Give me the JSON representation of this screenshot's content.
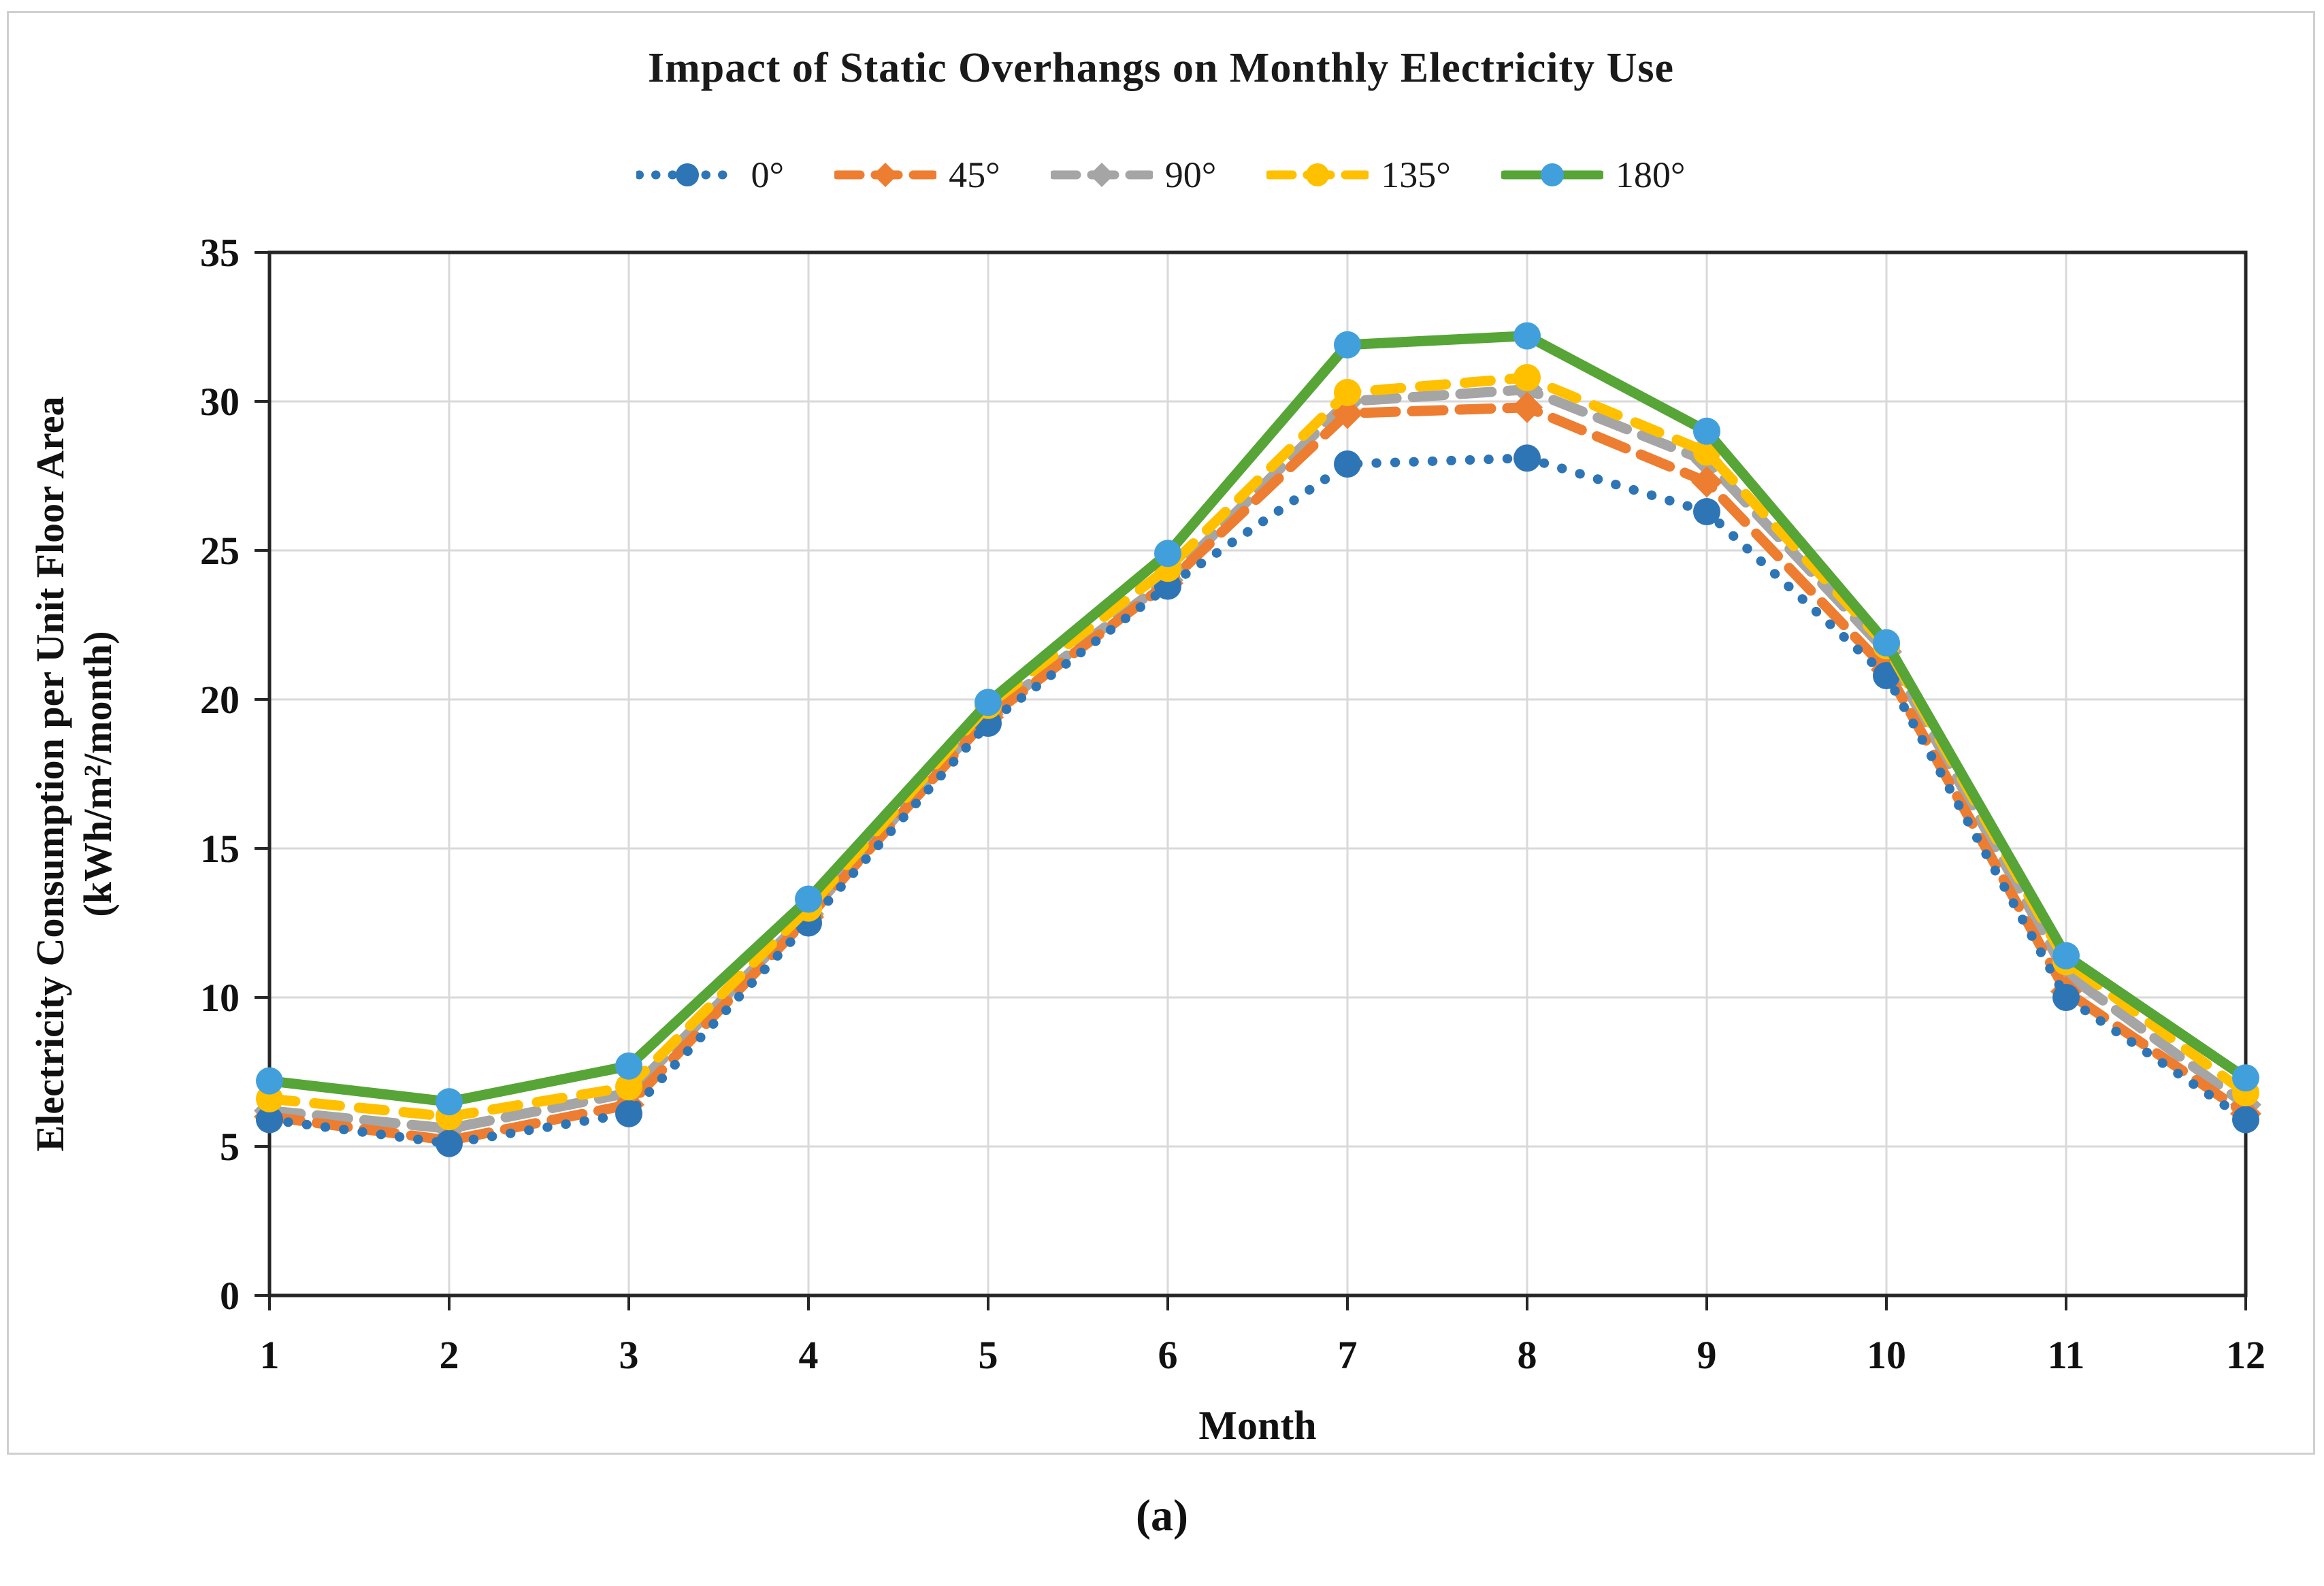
{
  "title": "Impact of Static Overhangs on Monthly Electricity Use",
  "caption": "(a)",
  "chart_data": {
    "type": "line",
    "title": "Impact of Static Overhangs on Monthly Electricity Use",
    "xlabel": "Month",
    "ylabel": "Electricity Consumption per Unit Floor Area (kWh/m²/month)",
    "ylabel_lines": [
      "Electricity Consumption per Unit Floor Area",
      "(kWh/m²/month)"
    ],
    "x": [
      1,
      2,
      3,
      4,
      5,
      6,
      7,
      8,
      9,
      10,
      11,
      12
    ],
    "ylim": [
      0,
      35
    ],
    "ytick_step": 5,
    "grid": "on",
    "legend_position": "top",
    "series": [
      {
        "name": "0°",
        "color": "#2E75B6",
        "marker_color": "#2E75B6",
        "dash": "dotted",
        "marker": "circle",
        "values": [
          5.9,
          5.1,
          6.1,
          12.5,
          19.2,
          23.8,
          27.9,
          28.1,
          26.3,
          20.8,
          10.0,
          5.9
        ]
      },
      {
        "name": "45°",
        "color": "#ED7D31",
        "marker_color": "#ED7D31",
        "dash": "long-dash",
        "marker": "diamond",
        "values": [
          6.0,
          5.2,
          6.4,
          12.7,
          19.4,
          23.9,
          29.6,
          29.8,
          27.3,
          21.0,
          10.2,
          6.1
        ]
      },
      {
        "name": "90°",
        "color": "#A5A5A5",
        "marker_color": "#A5A5A5",
        "dash": "long-dash",
        "marker": "diamond",
        "values": [
          6.2,
          5.6,
          6.8,
          12.8,
          19.5,
          24.0,
          30.0,
          30.4,
          28.0,
          21.6,
          10.8,
          6.4
        ]
      },
      {
        "name": "135°",
        "color": "#FFC000",
        "marker_color": "#FFC000",
        "dash": "dashed",
        "marker": "circle",
        "values": [
          6.6,
          6.0,
          7.0,
          13.0,
          19.8,
          24.4,
          30.3,
          30.8,
          28.3,
          21.8,
          11.2,
          6.8
        ]
      },
      {
        "name": "180°",
        "color": "#56A536",
        "marker_color": "#41A0DC",
        "dash": "solid",
        "marker": "circle",
        "values": [
          7.2,
          6.5,
          7.7,
          13.3,
          19.9,
          24.9,
          31.9,
          32.2,
          29.0,
          21.9,
          11.4,
          7.3
        ]
      }
    ]
  }
}
